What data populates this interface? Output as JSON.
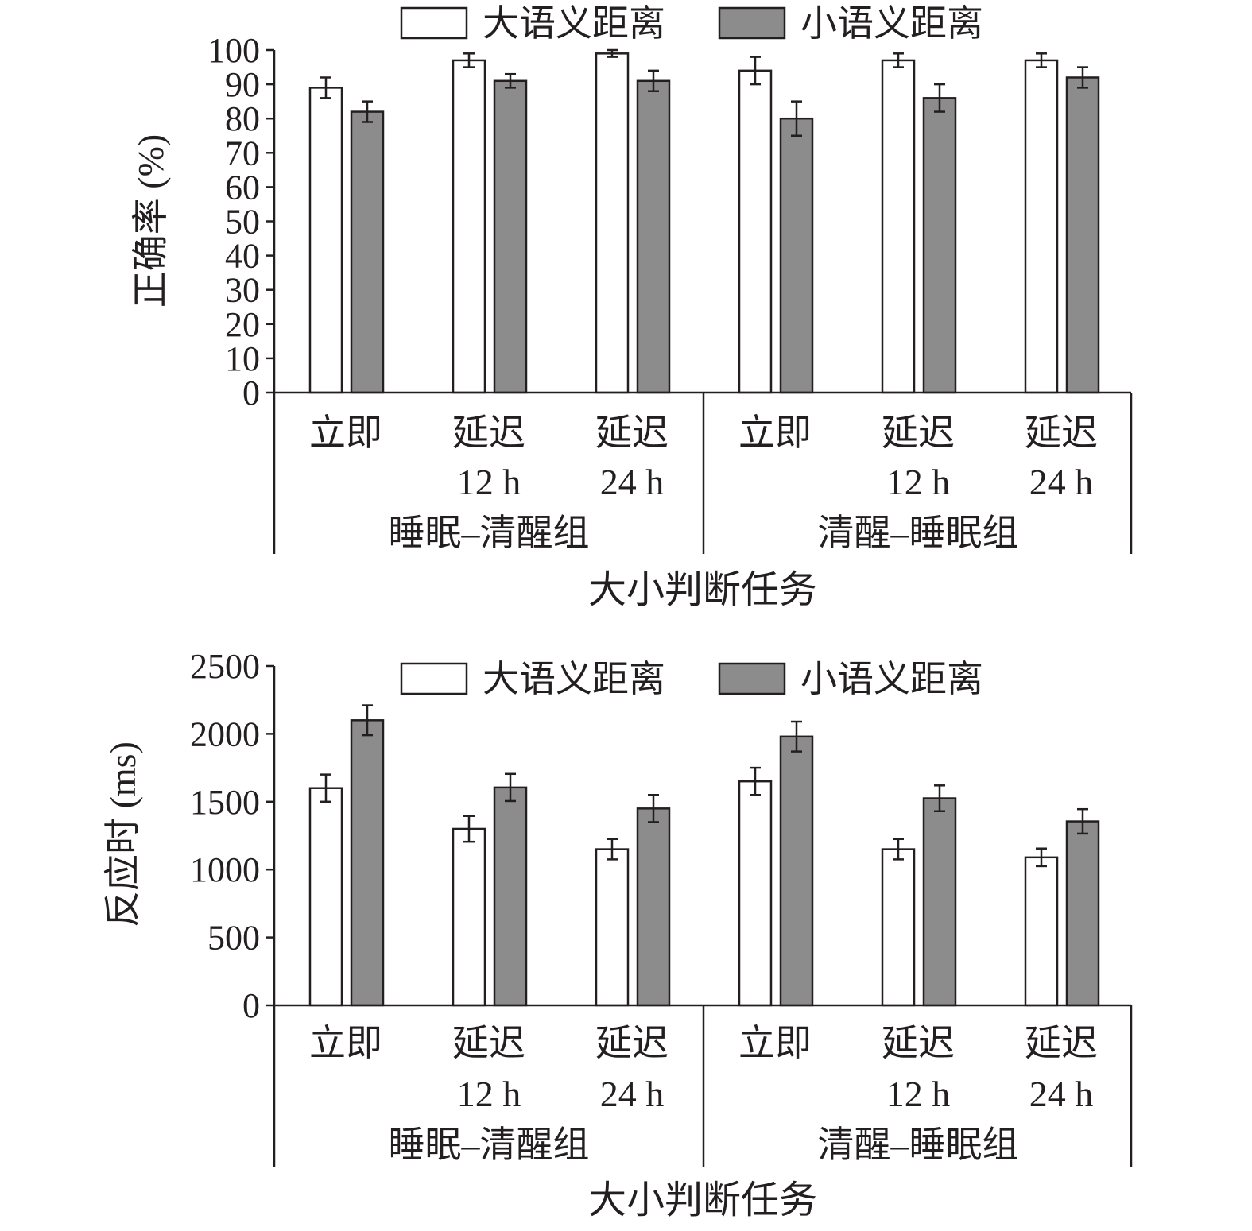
{
  "chart_data": [
    {
      "type": "bar",
      "title": "",
      "ylabel": "正确率 (%)",
      "xlabel": "大小判断任务",
      "ylim": [
        0,
        100
      ],
      "yticks": [
        0,
        10,
        20,
        30,
        40,
        50,
        60,
        70,
        80,
        90,
        100
      ],
      "groups": [
        "睡眠–清醒组",
        "清醒–睡眠组"
      ],
      "categories": [
        {
          "line1": "立即",
          "line2": ""
        },
        {
          "line1": "延迟",
          "line2": "12 h"
        },
        {
          "line1": "延迟",
          "line2": "24 h"
        },
        {
          "line1": "立即",
          "line2": ""
        },
        {
          "line1": "延迟",
          "line2": "12 h"
        },
        {
          "line1": "延迟",
          "line2": "24 h"
        }
      ],
      "legend_position": "top",
      "series": [
        {
          "name": "大语义距离",
          "color": "#ffffff",
          "values": [
            89,
            97,
            99,
            94,
            97,
            97
          ],
          "errors": [
            3,
            2,
            1,
            4,
            2,
            2
          ]
        },
        {
          "name": "小语义距离",
          "color": "#8c8c8c",
          "values": [
            82,
            91,
            91,
            80,
            86,
            92
          ],
          "errors": [
            3,
            2,
            3,
            5,
            4,
            3
          ]
        }
      ]
    },
    {
      "type": "bar",
      "title": "",
      "ylabel": "反应时 (ms)",
      "xlabel": "大小判断任务",
      "ylim": [
        0,
        2500
      ],
      "yticks": [
        0,
        500,
        1000,
        1500,
        2000,
        2500
      ],
      "groups": [
        "睡眠–清醒组",
        "清醒–睡眠组"
      ],
      "categories": [
        {
          "line1": "立即",
          "line2": ""
        },
        {
          "line1": "延迟",
          "line2": "12 h"
        },
        {
          "line1": "延迟",
          "line2": "24 h"
        },
        {
          "line1": "立即",
          "line2": ""
        },
        {
          "line1": "延迟",
          "line2": "12 h"
        },
        {
          "line1": "延迟",
          "line2": "24 h"
        }
      ],
      "legend_position": "top",
      "series": [
        {
          "name": "大语义距离",
          "color": "#ffffff",
          "values": [
            1600,
            1300,
            1150,
            1650,
            1150,
            1090
          ],
          "errors": [
            100,
            95,
            75,
            100,
            75,
            65
          ]
        },
        {
          "name": "小语义距离",
          "color": "#8c8c8c",
          "values": [
            2100,
            1605,
            1450,
            1980,
            1525,
            1355
          ],
          "errors": [
            110,
            100,
            100,
            110,
            95,
            90
          ]
        }
      ]
    }
  ]
}
